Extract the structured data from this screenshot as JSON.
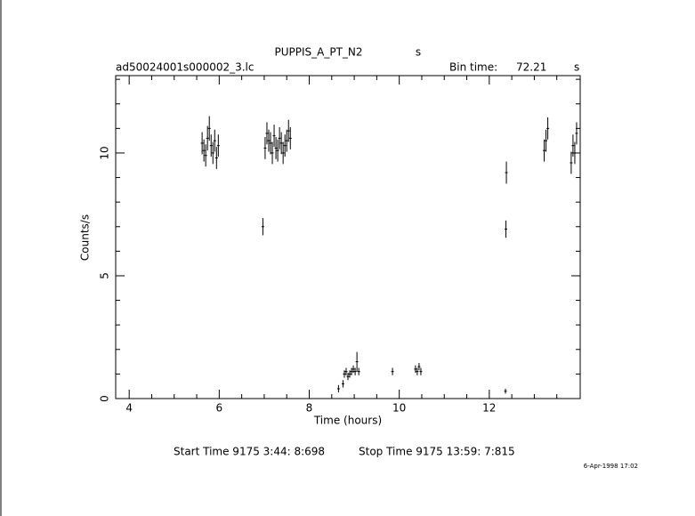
{
  "chart_data": {
    "type": "errorbar",
    "title": "PUPPIS_A_PT_N2",
    "title_unit": "s",
    "file_name": "ad50024001s000002_3.lc",
    "bin_time_label": "Bin time:",
    "bin_time": "72.21",
    "bin_time_unit": "s",
    "x_label": "Time (hours)",
    "y_label": "Counts/s",
    "start_time": "Start Time  9175  3:44: 8:698",
    "stop_time": "Stop Time  9175 13:59: 7:815",
    "date": "6-Apr-1998 17:02",
    "xlim": [
      3.7,
      14.02
    ],
    "ylim": [
      0,
      13.15
    ],
    "xticks": [
      4,
      6,
      8,
      10,
      12
    ],
    "yticks": [
      0,
      5,
      10
    ],
    "xminorticks": [
      4.5,
      5,
      5.5,
      6.5,
      7,
      7.5,
      8.5,
      9,
      9.5,
      10.5,
      11,
      11.5,
      12.5,
      13,
      13.5
    ],
    "yminorticks": [
      1,
      2,
      3,
      4,
      6,
      7,
      8,
      9,
      11,
      12,
      13
    ],
    "series": [
      {
        "color": "#000000",
        "x": [
          5.62,
          5.66,
          5.7,
          5.74,
          5.78,
          5.82,
          5.86,
          5.9,
          5.94,
          5.98,
          6.97,
          7.02,
          7.06,
          7.1,
          7.14,
          7.18,
          7.22,
          7.26,
          7.3,
          7.34,
          7.38,
          7.42,
          7.46,
          7.5,
          7.54,
          7.58,
          8.65,
          8.75,
          8.78,
          8.82,
          8.86,
          8.9,
          8.94,
          8.98,
          9.02,
          9.06,
          9.1,
          9.85,
          10.36,
          10.4,
          10.44,
          10.48,
          12.36,
          12.37,
          12.38,
          13.22,
          13.26,
          13.3,
          13.82,
          13.86,
          13.9,
          13.94
        ],
        "values": [
          10.4,
          10.1,
          9.9,
          10.6,
          11.0,
          10.3,
          10.0,
          10.5,
          9.8,
          10.3,
          7.0,
          10.2,
          10.8,
          10.5,
          10.4,
          10.0,
          10.7,
          10.2,
          10.1,
          10.6,
          10.4,
          10.0,
          10.3,
          10.5,
          10.9,
          10.6,
          0.4,
          0.6,
          1.0,
          1.1,
          0.9,
          1.0,
          1.1,
          1.2,
          1.1,
          1.5,
          1.1,
          1.1,
          1.2,
          1.1,
          1.3,
          1.1,
          0.3,
          6.9,
          9.2,
          10.1,
          10.5,
          11.0,
          9.6,
          10.3,
          10.0,
          10.8
        ],
        "errors": [
          0.45,
          0.45,
          0.45,
          0.5,
          0.5,
          0.45,
          0.45,
          0.45,
          0.45,
          0.45,
          0.35,
          0.45,
          0.45,
          0.45,
          0.45,
          0.45,
          0.45,
          0.45,
          0.45,
          0.45,
          0.45,
          0.45,
          0.45,
          0.45,
          0.45,
          0.45,
          0.15,
          0.15,
          0.15,
          0.15,
          0.15,
          0.15,
          0.15,
          0.15,
          0.15,
          0.4,
          0.15,
          0.15,
          0.15,
          0.15,
          0.15,
          0.15,
          0.1,
          0.35,
          0.45,
          0.45,
          0.45,
          0.45,
          0.45,
          0.45,
          0.45,
          0.45
        ]
      }
    ]
  }
}
